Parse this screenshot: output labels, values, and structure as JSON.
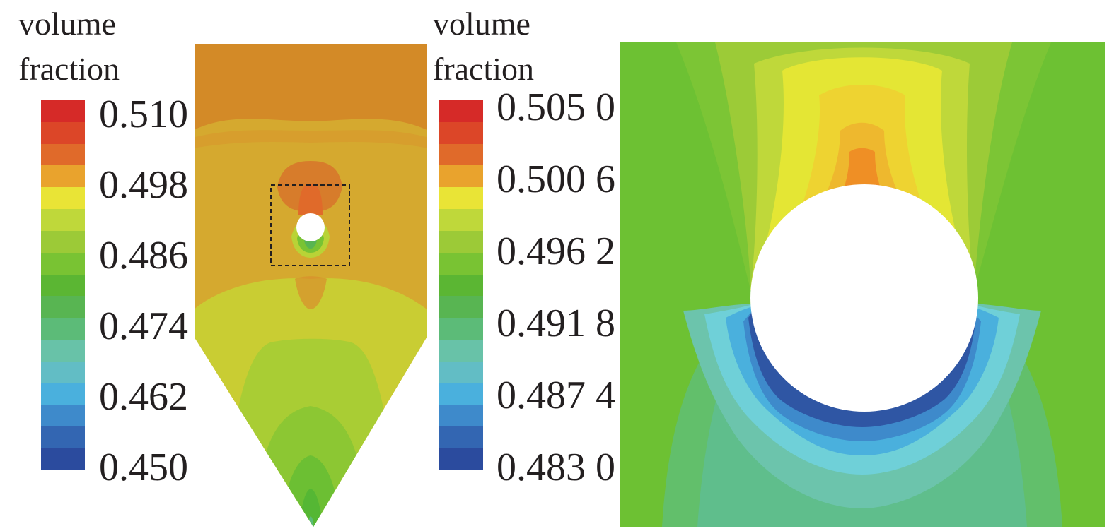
{
  "legend_left": {
    "title_line1": "volume",
    "title_line2": "fraction",
    "ticks": [
      "0.510",
      "0.498",
      "0.486",
      "0.474",
      "0.462",
      "0.450"
    ]
  },
  "legend_right": {
    "title_line1": "volume",
    "title_line2": "fraction",
    "ticks": [
      "0.505 0",
      "0.500 6",
      "0.496 2",
      "0.491 8",
      "0.487 4",
      "0.483 0"
    ]
  },
  "colormap": [
    "#d62a28",
    "#dc4628",
    "#e06a2a",
    "#e9a32d",
    "#e9e436",
    "#bfd83a",
    "#9cca37",
    "#79c333",
    "#5bb633",
    "#58b552",
    "#5cbb78",
    "#68c2a8",
    "#62bdc5",
    "#4ab0dd",
    "#3e8acb",
    "#3366b2",
    "#2b4b9e"
  ]
}
